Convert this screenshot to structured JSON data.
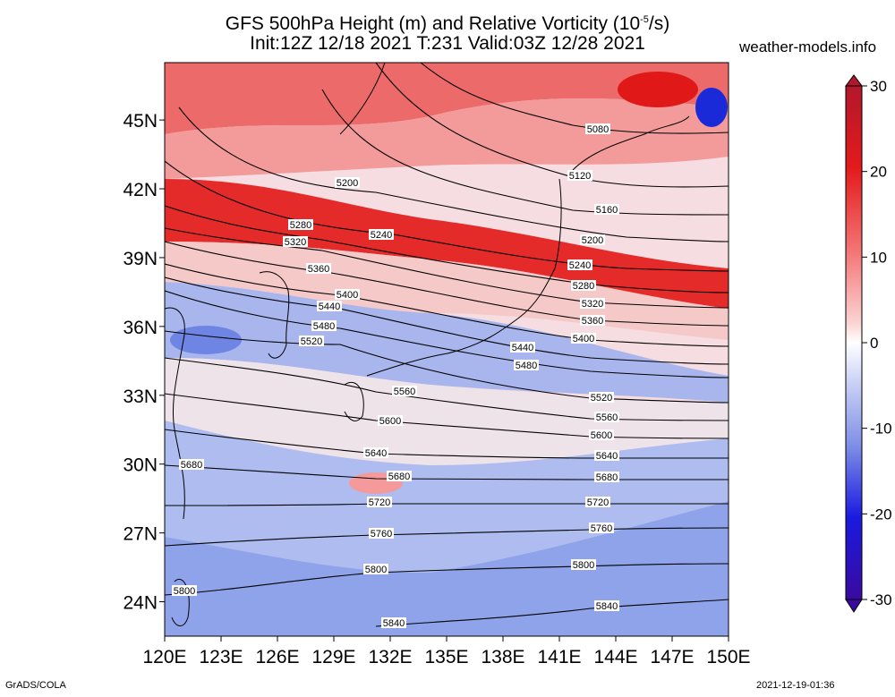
{
  "title": {
    "line1_prefix": "GFS 500hPa Height (m) and Relative Vorticity (10",
    "line1_exp": "-5",
    "line1_suffix": "/s)",
    "line2": "Init:12Z 12/18 2021 T:231 Valid:03Z 12/28 2021"
  },
  "site": "weather-models.info",
  "footer": {
    "left": "GrADS/COLA",
    "right": "2021-12-19-01:36"
  },
  "map": {
    "lon_range": [
      120,
      150
    ],
    "lat_range": [
      22.5,
      47.5
    ],
    "lat_ticks": [
      "45N",
      "42N",
      "39N",
      "36N",
      "33N",
      "30N",
      "27N",
      "24N"
    ],
    "lat_values": [
      45,
      42,
      39,
      36,
      33,
      30,
      27,
      24
    ],
    "lon_ticks": [
      "120E",
      "123E",
      "126E",
      "129E",
      "132E",
      "135E",
      "138E",
      "141E",
      "144E",
      "147E",
      "150E"
    ],
    "lon_values": [
      120,
      123,
      126,
      129,
      132,
      135,
      138,
      141,
      144,
      147,
      150
    ],
    "vorticity_bands": [
      {
        "name": "north-band-1",
        "color": "#ec6a6a"
      },
      {
        "name": "north-band-2",
        "color": "#f39a9a"
      },
      {
        "name": "jet-band",
        "color": "#e52a2a"
      },
      {
        "name": "mid-band",
        "color": "#f6c9c9"
      },
      {
        "name": "blue-band-1",
        "color": "#a9b6ee"
      },
      {
        "name": "mixed-band",
        "color": "#efe3ea"
      },
      {
        "name": "blue-band-2",
        "color": "#aebcf0"
      },
      {
        "name": "south-band",
        "color": "#8fa3ea"
      }
    ],
    "contours": [
      {
        "value": "5080",
        "label": "5080"
      },
      {
        "value": "5120",
        "label": "5120"
      },
      {
        "value": "5160",
        "label": "5160"
      },
      {
        "value": "5200",
        "label": "5200"
      },
      {
        "value": "5240",
        "label": "5240"
      },
      {
        "value": "5280",
        "label": "5280"
      },
      {
        "value": "5320",
        "label": "5320"
      },
      {
        "value": "5360",
        "label": "5360"
      },
      {
        "value": "5400",
        "label": "5400"
      },
      {
        "value": "5440",
        "label": "5440"
      },
      {
        "value": "5480",
        "label": "5480"
      },
      {
        "value": "5520",
        "label": "5520"
      },
      {
        "value": "5560",
        "label": "5560"
      },
      {
        "value": "5600",
        "label": "5600"
      },
      {
        "value": "5640",
        "label": "5640"
      },
      {
        "value": "5680",
        "label": "5680"
      },
      {
        "value": "5720",
        "label": "5720"
      },
      {
        "value": "5760",
        "label": "5760"
      },
      {
        "value": "5800",
        "label": "5800"
      },
      {
        "value": "5840",
        "label": "5840"
      }
    ]
  },
  "colorbar": {
    "labels": [
      "30",
      "20",
      "10",
      "0",
      "-10",
      "-20",
      "-30"
    ],
    "values": [
      30,
      20,
      10,
      0,
      -10,
      -20,
      -30
    ],
    "stops": [
      "#b2182b",
      "#e41a1c",
      "#f47a7a",
      "#fbd2d2",
      "#ffffff",
      "#c9d0f5",
      "#7f8fe6",
      "#1a1ae0",
      "#3a0aa0"
    ]
  }
}
